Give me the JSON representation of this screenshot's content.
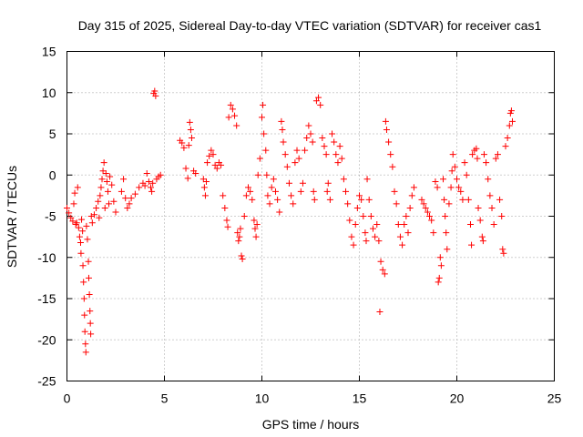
{
  "chart_data": {
    "type": "scatter",
    "title": "Day 315 of 2025, Sidereal Day-to-day VTEC variation (SDTVAR) for receiver cas1",
    "xlabel": "GPS time / hours",
    "ylabel": "SDTVAR / TECUs",
    "xlim": [
      0,
      25
    ],
    "ylim": [
      -25,
      15
    ],
    "xticks": [
      0,
      5,
      10,
      15,
      20,
      25
    ],
    "yticks": [
      -25,
      -20,
      -15,
      -10,
      -5,
      0,
      5,
      10,
      15
    ],
    "grid": true,
    "marker": "+",
    "marker_color": "#ff0000",
    "series": [
      {
        "name": "SDTVAR",
        "points": [
          [
            0.0,
            -4.0
          ],
          [
            0.1,
            -4.6
          ],
          [
            0.2,
            -5.2
          ],
          [
            0.3,
            -5.6
          ],
          [
            0.35,
            -3.5
          ],
          [
            0.4,
            -2.2
          ],
          [
            0.45,
            -6.0
          ],
          [
            0.5,
            -5.8
          ],
          [
            0.55,
            -1.5
          ],
          [
            0.6,
            -6.4
          ],
          [
            0.65,
            -7.5
          ],
          [
            0.7,
            -8.2
          ],
          [
            0.72,
            -9.5
          ],
          [
            0.75,
            -5.4
          ],
          [
            0.8,
            -6.8
          ],
          [
            0.82,
            -11.0
          ],
          [
            0.85,
            -13.0
          ],
          [
            0.88,
            -15.0
          ],
          [
            0.9,
            -17.0
          ],
          [
            0.92,
            -19.0
          ],
          [
            0.95,
            -20.5
          ],
          [
            0.97,
            -21.5
          ],
          [
            1.0,
            -6.2
          ],
          [
            1.05,
            -7.8
          ],
          [
            1.1,
            -10.5
          ],
          [
            1.12,
            -12.5
          ],
          [
            1.15,
            -14.5
          ],
          [
            1.18,
            -16.5
          ],
          [
            1.2,
            -18.0
          ],
          [
            1.22,
            -19.3
          ],
          [
            1.25,
            -5.0
          ],
          [
            1.3,
            -5.8
          ],
          [
            1.4,
            -4.8
          ],
          [
            1.5,
            -4.0
          ],
          [
            1.6,
            -3.2
          ],
          [
            1.65,
            -5.2
          ],
          [
            1.7,
            -2.5
          ],
          [
            1.75,
            -1.5
          ],
          [
            1.8,
            -0.5
          ],
          [
            1.85,
            0.5
          ],
          [
            1.9,
            1.5
          ],
          [
            1.95,
            -4.0
          ],
          [
            2.0,
            0.2
          ],
          [
            2.05,
            -0.8
          ],
          [
            2.1,
            -2.0
          ],
          [
            2.15,
            -3.5
          ],
          [
            2.2,
            -0.2
          ],
          [
            2.3,
            -1.2
          ],
          [
            2.4,
            -3.2
          ],
          [
            2.5,
            -4.5
          ],
          [
            2.8,
            -2.0
          ],
          [
            2.9,
            -0.5
          ],
          [
            3.0,
            -2.8
          ],
          [
            3.1,
            -4.0
          ],
          [
            3.2,
            -3.5
          ],
          [
            3.3,
            -2.8
          ],
          [
            3.5,
            -2.3
          ],
          [
            3.7,
            -1.5
          ],
          [
            3.9,
            -1.0
          ],
          [
            4.0,
            -1.3
          ],
          [
            4.1,
            0.2
          ],
          [
            4.2,
            -0.8
          ],
          [
            4.3,
            -1.5
          ],
          [
            4.35,
            -2.0
          ],
          [
            4.4,
            -1.0
          ],
          [
            4.45,
            9.9
          ],
          [
            4.5,
            10.2
          ],
          [
            4.55,
            9.6
          ],
          [
            4.6,
            -0.5
          ],
          [
            4.7,
            -0.2
          ],
          [
            4.8,
            0.0
          ],
          [
            5.8,
            4.2
          ],
          [
            5.9,
            3.9
          ],
          [
            6.0,
            3.3
          ],
          [
            6.1,
            0.8
          ],
          [
            6.2,
            -0.4
          ],
          [
            6.25,
            3.6
          ],
          [
            6.3,
            6.4
          ],
          [
            6.35,
            5.5
          ],
          [
            6.4,
            4.5
          ],
          [
            6.5,
            0.5
          ],
          [
            6.6,
            0.2
          ],
          [
            7.0,
            -0.5
          ],
          [
            7.05,
            -1.5
          ],
          [
            7.1,
            -2.5
          ],
          [
            7.15,
            -0.8
          ],
          [
            7.2,
            1.5
          ],
          [
            7.3,
            2.3
          ],
          [
            7.4,
            3.0
          ],
          [
            7.5,
            2.5
          ],
          [
            7.6,
            1.2
          ],
          [
            7.7,
            0.8
          ],
          [
            7.8,
            1.5
          ],
          [
            7.9,
            1.2
          ],
          [
            8.0,
            -2.5
          ],
          [
            8.1,
            -4.0
          ],
          [
            8.2,
            -5.5
          ],
          [
            8.25,
            -6.3
          ],
          [
            8.3,
            7.0
          ],
          [
            8.4,
            8.5
          ],
          [
            8.5,
            8.0
          ],
          [
            8.6,
            7.2
          ],
          [
            8.7,
            6.0
          ],
          [
            8.75,
            -7.0
          ],
          [
            8.8,
            -8.0
          ],
          [
            8.85,
            -7.5
          ],
          [
            8.9,
            -6.5
          ],
          [
            8.95,
            -9.8
          ],
          [
            9.0,
            -10.2
          ],
          [
            9.1,
            -5.0
          ],
          [
            9.2,
            -2.5
          ],
          [
            9.3,
            -1.5
          ],
          [
            9.4,
            -2.0
          ],
          [
            9.5,
            -3.0
          ],
          [
            9.6,
            -5.5
          ],
          [
            9.65,
            -6.5
          ],
          [
            9.7,
            -7.5
          ],
          [
            9.75,
            -6.0
          ],
          [
            9.8,
            0.0
          ],
          [
            9.9,
            2.0
          ],
          [
            10.0,
            7.0
          ],
          [
            10.05,
            8.5
          ],
          [
            10.1,
            5.0
          ],
          [
            10.2,
            3.0
          ],
          [
            10.25,
            0.0
          ],
          [
            10.3,
            -2.5
          ],
          [
            10.4,
            -3.5
          ],
          [
            10.5,
            -1.5
          ],
          [
            10.6,
            -0.5
          ],
          [
            10.7,
            -2.0
          ],
          [
            10.8,
            -3.0
          ],
          [
            10.9,
            -4.5
          ],
          [
            11.0,
            6.5
          ],
          [
            11.05,
            5.5
          ],
          [
            11.1,
            4.0
          ],
          [
            11.2,
            2.5
          ],
          [
            11.3,
            1.0
          ],
          [
            11.4,
            -1.0
          ],
          [
            11.5,
            -2.5
          ],
          [
            11.6,
            -3.5
          ],
          [
            11.7,
            1.5
          ],
          [
            11.8,
            3.0
          ],
          [
            11.9,
            2.0
          ],
          [
            12.0,
            -2.0
          ],
          [
            12.1,
            -1.0
          ],
          [
            12.2,
            3.0
          ],
          [
            12.3,
            4.5
          ],
          [
            12.4,
            6.0
          ],
          [
            12.5,
            5.0
          ],
          [
            12.6,
            4.0
          ],
          [
            12.65,
            -2.0
          ],
          [
            12.7,
            -3.0
          ],
          [
            12.8,
            9.0
          ],
          [
            12.9,
            9.4
          ],
          [
            13.0,
            8.5
          ],
          [
            13.1,
            4.5
          ],
          [
            13.2,
            3.5
          ],
          [
            13.3,
            2.5
          ],
          [
            13.35,
            -2.0
          ],
          [
            13.4,
            -1.0
          ],
          [
            13.5,
            -3.0
          ],
          [
            13.6,
            5.0
          ],
          [
            13.7,
            4.0
          ],
          [
            13.8,
            2.5
          ],
          [
            13.9,
            1.5
          ],
          [
            14.0,
            3.5
          ],
          [
            14.1,
            2.0
          ],
          [
            14.2,
            -0.5
          ],
          [
            14.3,
            -2.0
          ],
          [
            14.4,
            -3.5
          ],
          [
            14.5,
            -5.5
          ],
          [
            14.6,
            -7.5
          ],
          [
            14.7,
            -8.5
          ],
          [
            14.8,
            -6.0
          ],
          [
            14.9,
            -4.0
          ],
          [
            15.0,
            -2.5
          ],
          [
            15.1,
            -3.0
          ],
          [
            15.2,
            -5.0
          ],
          [
            15.3,
            -7.0
          ],
          [
            15.35,
            -8.0
          ],
          [
            15.4,
            -0.5
          ],
          [
            15.5,
            -3.0
          ],
          [
            15.6,
            -5.0
          ],
          [
            15.7,
            -6.5
          ],
          [
            15.8,
            -7.5
          ],
          [
            15.9,
            -6.0
          ],
          [
            16.0,
            -8.0
          ],
          [
            16.05,
            -16.6
          ],
          [
            16.1,
            -10.5
          ],
          [
            16.2,
            -11.5
          ],
          [
            16.3,
            -12.0
          ],
          [
            16.35,
            6.5
          ],
          [
            16.4,
            5.5
          ],
          [
            16.5,
            4.0
          ],
          [
            16.6,
            2.5
          ],
          [
            16.7,
            1.0
          ],
          [
            16.8,
            -2.0
          ],
          [
            16.9,
            -3.5
          ],
          [
            17.0,
            -6.0
          ],
          [
            17.1,
            -7.5
          ],
          [
            17.2,
            -8.5
          ],
          [
            17.3,
            -6.0
          ],
          [
            17.4,
            -5.0
          ],
          [
            17.5,
            -7.0
          ],
          [
            17.6,
            -4.0
          ],
          [
            17.7,
            -2.5
          ],
          [
            17.8,
            -1.5
          ],
          [
            18.2,
            -3.0
          ],
          [
            18.3,
            -3.5
          ],
          [
            18.4,
            -4.0
          ],
          [
            18.5,
            -4.5
          ],
          [
            18.6,
            -5.0
          ],
          [
            18.7,
            -5.5
          ],
          [
            18.8,
            -7.0
          ],
          [
            18.9,
            -0.8
          ],
          [
            19.0,
            -1.5
          ],
          [
            19.05,
            -13.0
          ],
          [
            19.1,
            -12.5
          ],
          [
            19.15,
            -10.0
          ],
          [
            19.2,
            -11.0
          ],
          [
            19.3,
            -0.5
          ],
          [
            19.35,
            -3.0
          ],
          [
            19.4,
            -5.0
          ],
          [
            19.45,
            -7.0
          ],
          [
            19.5,
            -9.0
          ],
          [
            19.6,
            -3.5
          ],
          [
            19.7,
            -1.5
          ],
          [
            19.75,
            0.5
          ],
          [
            19.8,
            2.5
          ],
          [
            19.9,
            1.0
          ],
          [
            20.0,
            -0.5
          ],
          [
            20.1,
            -1.5
          ],
          [
            20.2,
            -2.0
          ],
          [
            20.3,
            -3.0
          ],
          [
            20.4,
            1.5
          ],
          [
            20.5,
            0.0
          ],
          [
            20.6,
            -3.0
          ],
          [
            20.7,
            -6.0
          ],
          [
            20.75,
            -8.5
          ],
          [
            20.8,
            2.5
          ],
          [
            20.9,
            3.0
          ],
          [
            21.0,
            3.2
          ],
          [
            21.05,
            2.0
          ],
          [
            21.1,
            -4.0
          ],
          [
            21.2,
            -5.5
          ],
          [
            21.3,
            -7.5
          ],
          [
            21.35,
            -8.0
          ],
          [
            21.4,
            2.5
          ],
          [
            21.5,
            1.5
          ],
          [
            21.6,
            -0.5
          ],
          [
            21.7,
            -2.5
          ],
          [
            21.8,
            -4.0
          ],
          [
            21.9,
            -6.0
          ],
          [
            22.0,
            2.0
          ],
          [
            22.1,
            2.5
          ],
          [
            22.2,
            -3.0
          ],
          [
            22.3,
            -5.0
          ],
          [
            22.35,
            -9.0
          ],
          [
            22.4,
            -9.5
          ],
          [
            22.5,
            3.5
          ],
          [
            22.6,
            4.5
          ],
          [
            22.7,
            6.0
          ],
          [
            22.75,
            7.5
          ],
          [
            22.8,
            7.8
          ],
          [
            22.85,
            6.5
          ]
        ]
      }
    ]
  }
}
